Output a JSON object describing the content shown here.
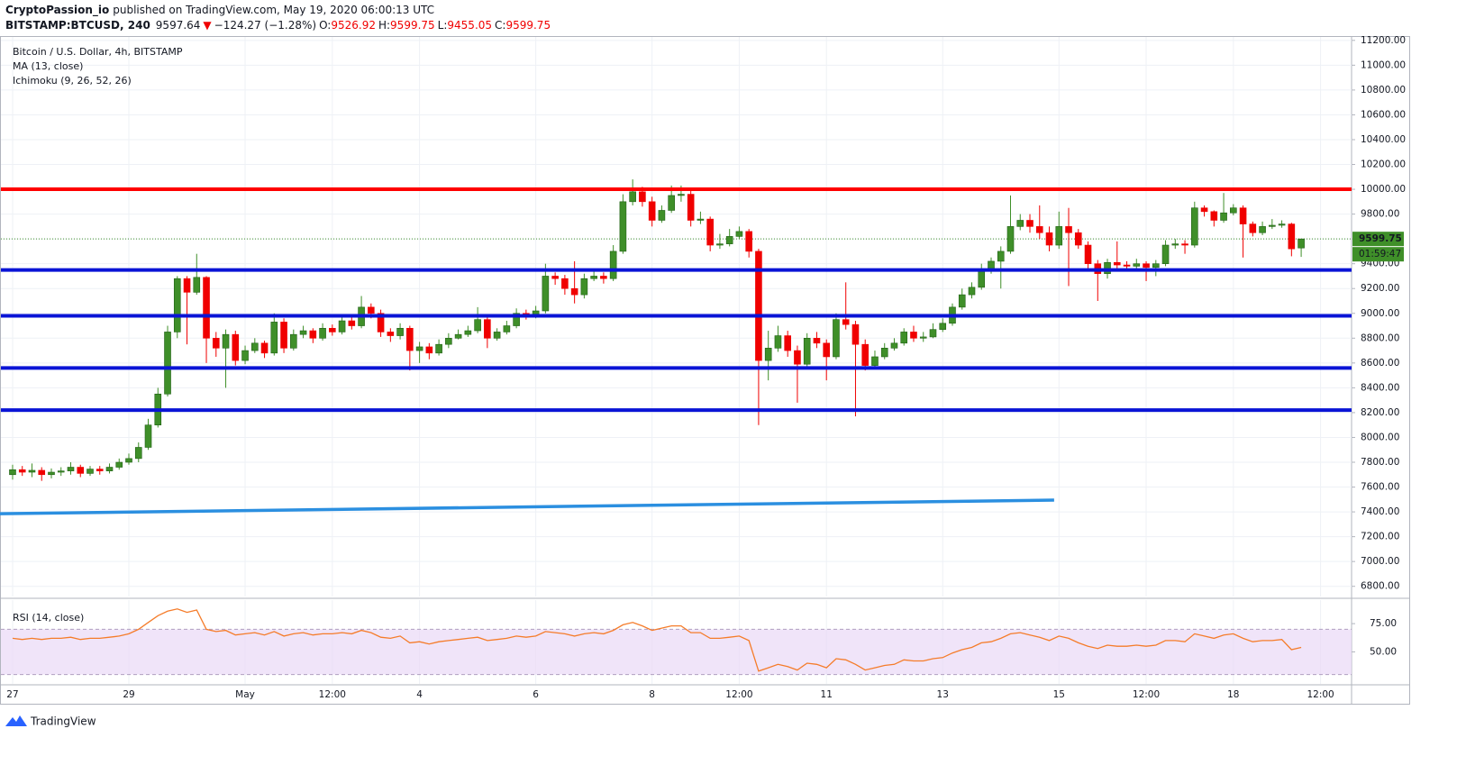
{
  "header": {
    "publisher": "CryptoPassion_io",
    "published": "published on TradingView.com, May 19, 2020 06:00:13 UTC",
    "symbol": "BITSTAMP:BTCUSD, 240",
    "last": "9597.64",
    "arrow": "▼",
    "change": "−124.27 (−1.28%)",
    "o_label": "O:",
    "o": "9526.92",
    "h_label": "H:",
    "h": "9599.75",
    "l_label": "L:",
    "l": "9455.05",
    "c_label": "C:",
    "c": "9599.75"
  },
  "footer": "TradingView",
  "chart_data": [
    {
      "type": "candlestick",
      "title": "Bitcoin / U.S. Dollar, 4h, BITSTAMP",
      "indicators": [
        "MA (13, close)",
        "Ichimoku (9, 26, 52, 26)"
      ],
      "up_color": "#3f8f29",
      "down_color": "#f00000",
      "grid": true,
      "xlim": [
        -1.3,
        138.2
      ],
      "xticks": [
        {
          "value": 0,
          "label": "27"
        },
        {
          "value": 12,
          "label": "29"
        },
        {
          "value": 24,
          "label": "May"
        },
        {
          "value": 33,
          "label": "12:00"
        },
        {
          "value": 42,
          "label": "4"
        },
        {
          "value": 54,
          "label": "6"
        },
        {
          "value": 66,
          "label": "8"
        },
        {
          "value": 75,
          "label": "12:00"
        },
        {
          "value": 84,
          "label": "11"
        },
        {
          "value": 96,
          "label": "13"
        },
        {
          "value": 108,
          "label": "15"
        },
        {
          "value": 117,
          "label": "12:00"
        },
        {
          "value": 126,
          "label": "18"
        },
        {
          "value": 135,
          "label": "12:00"
        }
      ],
      "ylim": [
        6718,
        11235
      ],
      "yticks": [
        {
          "value": 6800,
          "label": "6800.00"
        },
        {
          "value": 7000,
          "label": "7000.00"
        },
        {
          "value": 7200,
          "label": "7200.00"
        },
        {
          "value": 7400,
          "label": "7400.00"
        },
        {
          "value": 7600,
          "label": "7600.00"
        },
        {
          "value": 7800,
          "label": "7800.00"
        },
        {
          "value": 8000,
          "label": "8000.00"
        },
        {
          "value": 8200,
          "label": "8200.00"
        },
        {
          "value": 8400,
          "label": "8400.00"
        },
        {
          "value": 8600,
          "label": "8600.00"
        },
        {
          "value": 8800,
          "label": "8800.00"
        },
        {
          "value": 9000,
          "label": "9000.00"
        },
        {
          "value": 9200,
          "label": "9200.00"
        },
        {
          "value": 9400,
          "label": "9400.00"
        },
        {
          "value": 9600,
          "label": "9600.00"
        },
        {
          "value": 9800,
          "label": "9800.00"
        },
        {
          "value": 10000,
          "label": "10000.00"
        },
        {
          "value": 10200,
          "label": "10200.00"
        },
        {
          "value": 10400,
          "label": "10400.00"
        },
        {
          "value": 10600,
          "label": "10600.00"
        },
        {
          "value": 10800,
          "label": "10800.00"
        },
        {
          "value": 11000,
          "label": "11000.00"
        },
        {
          "value": 11200,
          "label": "11200.00"
        }
      ],
      "levels": [
        {
          "value": 10000,
          "color": "#ff0000"
        },
        {
          "value": 9350,
          "color": "#0a14d6"
        },
        {
          "value": 8980,
          "color": "#0a14d6"
        },
        {
          "value": 8560,
          "color": "#0a14d6"
        },
        {
          "value": 8220,
          "color": "#0a14d6"
        }
      ],
      "trend_line": {
        "x": [
          -1.3,
          107.5
        ],
        "y": [
          7385,
          7495
        ],
        "color": "#2b8fe0"
      },
      "price_label": {
        "value": 9599.75,
        "label": "9599.75",
        "color": "#3f8f29"
      },
      "countdown": "01:59:47",
      "candles": [
        [
          7700,
          7780,
          7660,
          7740
        ],
        [
          7740,
          7770,
          7690,
          7720
        ],
        [
          7720,
          7790,
          7680,
          7735
        ],
        [
          7735,
          7760,
          7650,
          7700
        ],
        [
          7700,
          7750,
          7670,
          7720
        ],
        [
          7720,
          7760,
          7690,
          7730
        ],
        [
          7730,
          7800,
          7700,
          7760
        ],
        [
          7760,
          7780,
          7680,
          7710
        ],
        [
          7710,
          7770,
          7690,
          7745
        ],
        [
          7745,
          7770,
          7700,
          7730
        ],
        [
          7730,
          7790,
          7710,
          7760
        ],
        [
          7760,
          7830,
          7740,
          7800
        ],
        [
          7800,
          7870,
          7780,
          7830
        ],
        [
          7830,
          7960,
          7800,
          7920
        ],
        [
          7920,
          8150,
          7900,
          8100
        ],
        [
          8100,
          8400,
          8080,
          8350
        ],
        [
          8350,
          8900,
          8330,
          8850
        ],
        [
          8850,
          9300,
          8800,
          9280
        ],
        [
          9280,
          9300,
          8750,
          9170
        ],
        [
          9170,
          9480,
          9150,
          9290
        ],
        [
          9290,
          9300,
          8600,
          8800
        ],
        [
          8800,
          8850,
          8650,
          8720
        ],
        [
          8720,
          8870,
          8400,
          8830
        ],
        [
          8830,
          8860,
          8580,
          8620
        ],
        [
          8620,
          8740,
          8590,
          8700
        ],
        [
          8700,
          8800,
          8680,
          8760
        ],
        [
          8760,
          8780,
          8640,
          8680
        ],
        [
          8680,
          9000,
          8660,
          8930
        ],
        [
          8930,
          8960,
          8680,
          8720
        ],
        [
          8720,
          8870,
          8700,
          8830
        ],
        [
          8830,
          8900,
          8800,
          8860
        ],
        [
          8860,
          8880,
          8760,
          8800
        ],
        [
          8800,
          8920,
          8780,
          8880
        ],
        [
          8880,
          8910,
          8820,
          8850
        ],
        [
          8850,
          8980,
          8830,
          8940
        ],
        [
          8940,
          8970,
          8870,
          8900
        ],
        [
          8900,
          9140,
          8880,
          9050
        ],
        [
          9050,
          9080,
          8960,
          9000
        ],
        [
          9000,
          9030,
          8810,
          8850
        ],
        [
          8850,
          8880,
          8770,
          8820
        ],
        [
          8820,
          8920,
          8790,
          8880
        ],
        [
          8880,
          8900,
          8540,
          8700
        ],
        [
          8700,
          8770,
          8600,
          8730
        ],
        [
          8730,
          8760,
          8630,
          8680
        ],
        [
          8680,
          8790,
          8660,
          8750
        ],
        [
          8750,
          8840,
          8720,
          8800
        ],
        [
          8800,
          8870,
          8790,
          8830
        ],
        [
          8830,
          8900,
          8810,
          8860
        ],
        [
          8860,
          9050,
          8840,
          8950
        ],
        [
          8950,
          8970,
          8720,
          8800
        ],
        [
          8800,
          8880,
          8780,
          8850
        ],
        [
          8850,
          8940,
          8830,
          8900
        ],
        [
          8900,
          9040,
          8880,
          9000
        ],
        [
          9000,
          9030,
          8950,
          8980
        ],
        [
          8980,
          9060,
          8960,
          9020
        ],
        [
          9020,
          9400,
          9000,
          9300
        ],
        [
          9300,
          9330,
          9230,
          9280
        ],
        [
          9280,
          9310,
          9150,
          9200
        ],
        [
          9200,
          9420,
          9080,
          9150
        ],
        [
          9150,
          9320,
          9120,
          9280
        ],
        [
          9280,
          9350,
          9260,
          9300
        ],
        [
          9300,
          9330,
          9240,
          9280
        ],
        [
          9280,
          9550,
          9260,
          9500
        ],
        [
          9500,
          9960,
          9480,
          9900
        ],
        [
          9900,
          10080,
          9870,
          9980
        ],
        [
          9980,
          10020,
          9860,
          9900
        ],
        [
          9900,
          9940,
          9700,
          9750
        ],
        [
          9750,
          9870,
          9730,
          9830
        ],
        [
          9830,
          10030,
          9810,
          9950
        ],
        [
          9950,
          10030,
          9900,
          9960
        ],
        [
          9960,
          9990,
          9700,
          9750
        ],
        [
          9750,
          9820,
          9720,
          9760
        ],
        [
          9760,
          9780,
          9500,
          9550
        ],
        [
          9550,
          9640,
          9520,
          9560
        ],
        [
          9560,
          9680,
          9540,
          9620
        ],
        [
          9620,
          9700,
          9600,
          9660
        ],
        [
          9660,
          9680,
          9450,
          9500
        ],
        [
          9500,
          9520,
          8100,
          8620
        ],
        [
          8620,
          8860,
          8460,
          8720
        ],
        [
          8720,
          8900,
          8690,
          8820
        ],
        [
          8820,
          8860,
          8650,
          8700
        ],
        [
          8700,
          8740,
          8280,
          8590
        ],
        [
          8590,
          8840,
          8560,
          8800
        ],
        [
          8800,
          8850,
          8720,
          8760
        ],
        [
          8760,
          8790,
          8460,
          8650
        ],
        [
          8650,
          9000,
          8630,
          8950
        ],
        [
          8950,
          9250,
          8870,
          8910
        ],
        [
          8910,
          8940,
          8170,
          8750
        ],
        [
          8750,
          8790,
          8540,
          8580
        ],
        [
          8580,
          8700,
          8560,
          8650
        ],
        [
          8650,
          8760,
          8630,
          8720
        ],
        [
          8720,
          8800,
          8700,
          8760
        ],
        [
          8760,
          8880,
          8740,
          8850
        ],
        [
          8850,
          8900,
          8770,
          8800
        ],
        [
          8800,
          8850,
          8770,
          8810
        ],
        [
          8810,
          8920,
          8800,
          8870
        ],
        [
          8870,
          8960,
          8850,
          8920
        ],
        [
          8920,
          9080,
          8900,
          9050
        ],
        [
          9050,
          9200,
          9030,
          9150
        ],
        [
          9150,
          9250,
          9120,
          9210
        ],
        [
          9210,
          9400,
          9190,
          9350
        ],
        [
          9350,
          9450,
          9320,
          9420
        ],
        [
          9420,
          9540,
          9200,
          9500
        ],
        [
          9500,
          9950,
          9480,
          9700
        ],
        [
          9700,
          9800,
          9670,
          9750
        ],
        [
          9750,
          9800,
          9650,
          9700
        ],
        [
          9700,
          9870,
          9600,
          9650
        ],
        [
          9650,
          9700,
          9500,
          9550
        ],
        [
          9550,
          9820,
          9520,
          9700
        ],
        [
          9700,
          9850,
          9220,
          9650
        ],
        [
          9650,
          9680,
          9520,
          9550
        ],
        [
          9550,
          9580,
          9350,
          9400
        ],
        [
          9400,
          9430,
          9100,
          9320
        ],
        [
          9320,
          9440,
          9280,
          9410
        ],
        [
          9410,
          9580,
          9360,
          9390
        ],
        [
          9390,
          9420,
          9340,
          9380
        ],
        [
          9380,
          9440,
          9360,
          9400
        ],
        [
          9400,
          9420,
          9260,
          9370
        ],
        [
          9370,
          9430,
          9300,
          9400
        ],
        [
          9400,
          9590,
          9380,
          9550
        ],
        [
          9550,
          9600,
          9520,
          9560
        ],
        [
          9560,
          9590,
          9480,
          9550
        ],
        [
          9550,
          9900,
          9530,
          9850
        ],
        [
          9850,
          9870,
          9780,
          9820
        ],
        [
          9820,
          9830,
          9700,
          9750
        ],
        [
          9750,
          9970,
          9730,
          9810
        ],
        [
          9810,
          9880,
          9790,
          9850
        ],
        [
          9850,
          9870,
          9450,
          9720
        ],
        [
          9720,
          9740,
          9620,
          9650
        ],
        [
          9650,
          9740,
          9630,
          9700
        ],
        [
          9700,
          9760,
          9680,
          9710
        ],
        [
          9710,
          9750,
          9690,
          9720
        ],
        [
          9720,
          9730,
          9460,
          9520
        ],
        [
          9526.92,
          9599.75,
          9455.05,
          9599.75
        ]
      ]
    },
    {
      "type": "line",
      "title": "RSI (14, close)",
      "color": "#f57c2a",
      "band": [
        30,
        70
      ],
      "band_color": "#e9d9f7",
      "ylim": [
        22.5,
        95
      ],
      "yticks": [
        {
          "value": 50,
          "label": "50.00"
        },
        {
          "value": 75,
          "label": "75.00"
        }
      ],
      "values": [
        62,
        61,
        62,
        61,
        62,
        62,
        63,
        61,
        62,
        62,
        63,
        64,
        66,
        70,
        76,
        82,
        86,
        88,
        85,
        87,
        70,
        68,
        69,
        65,
        66,
        67,
        65,
        68,
        64,
        66,
        67,
        65,
        66,
        66,
        67,
        66,
        69,
        67,
        63,
        62,
        64,
        58,
        59,
        57,
        59,
        60,
        61,
        62,
        63,
        60,
        61,
        62,
        64,
        63,
        64,
        68,
        67,
        66,
        64,
        66,
        67,
        66,
        69,
        74,
        76,
        73,
        69,
        71,
        73,
        73,
        67,
        67,
        62,
        62,
        63,
        64,
        60,
        33,
        36,
        39,
        37,
        34,
        40,
        39,
        36,
        44,
        43,
        39,
        34,
        36,
        38,
        39,
        43,
        42,
        42,
        44,
        45,
        49,
        52,
        54,
        58,
        59,
        62,
        66,
        67,
        65,
        63,
        60,
        64,
        62,
        58,
        55,
        53,
        56,
        55,
        55,
        56,
        55,
        56,
        60,
        60,
        59,
        66,
        64,
        62,
        65,
        66,
        62,
        59,
        60,
        60,
        61,
        52,
        54
      ]
    }
  ]
}
